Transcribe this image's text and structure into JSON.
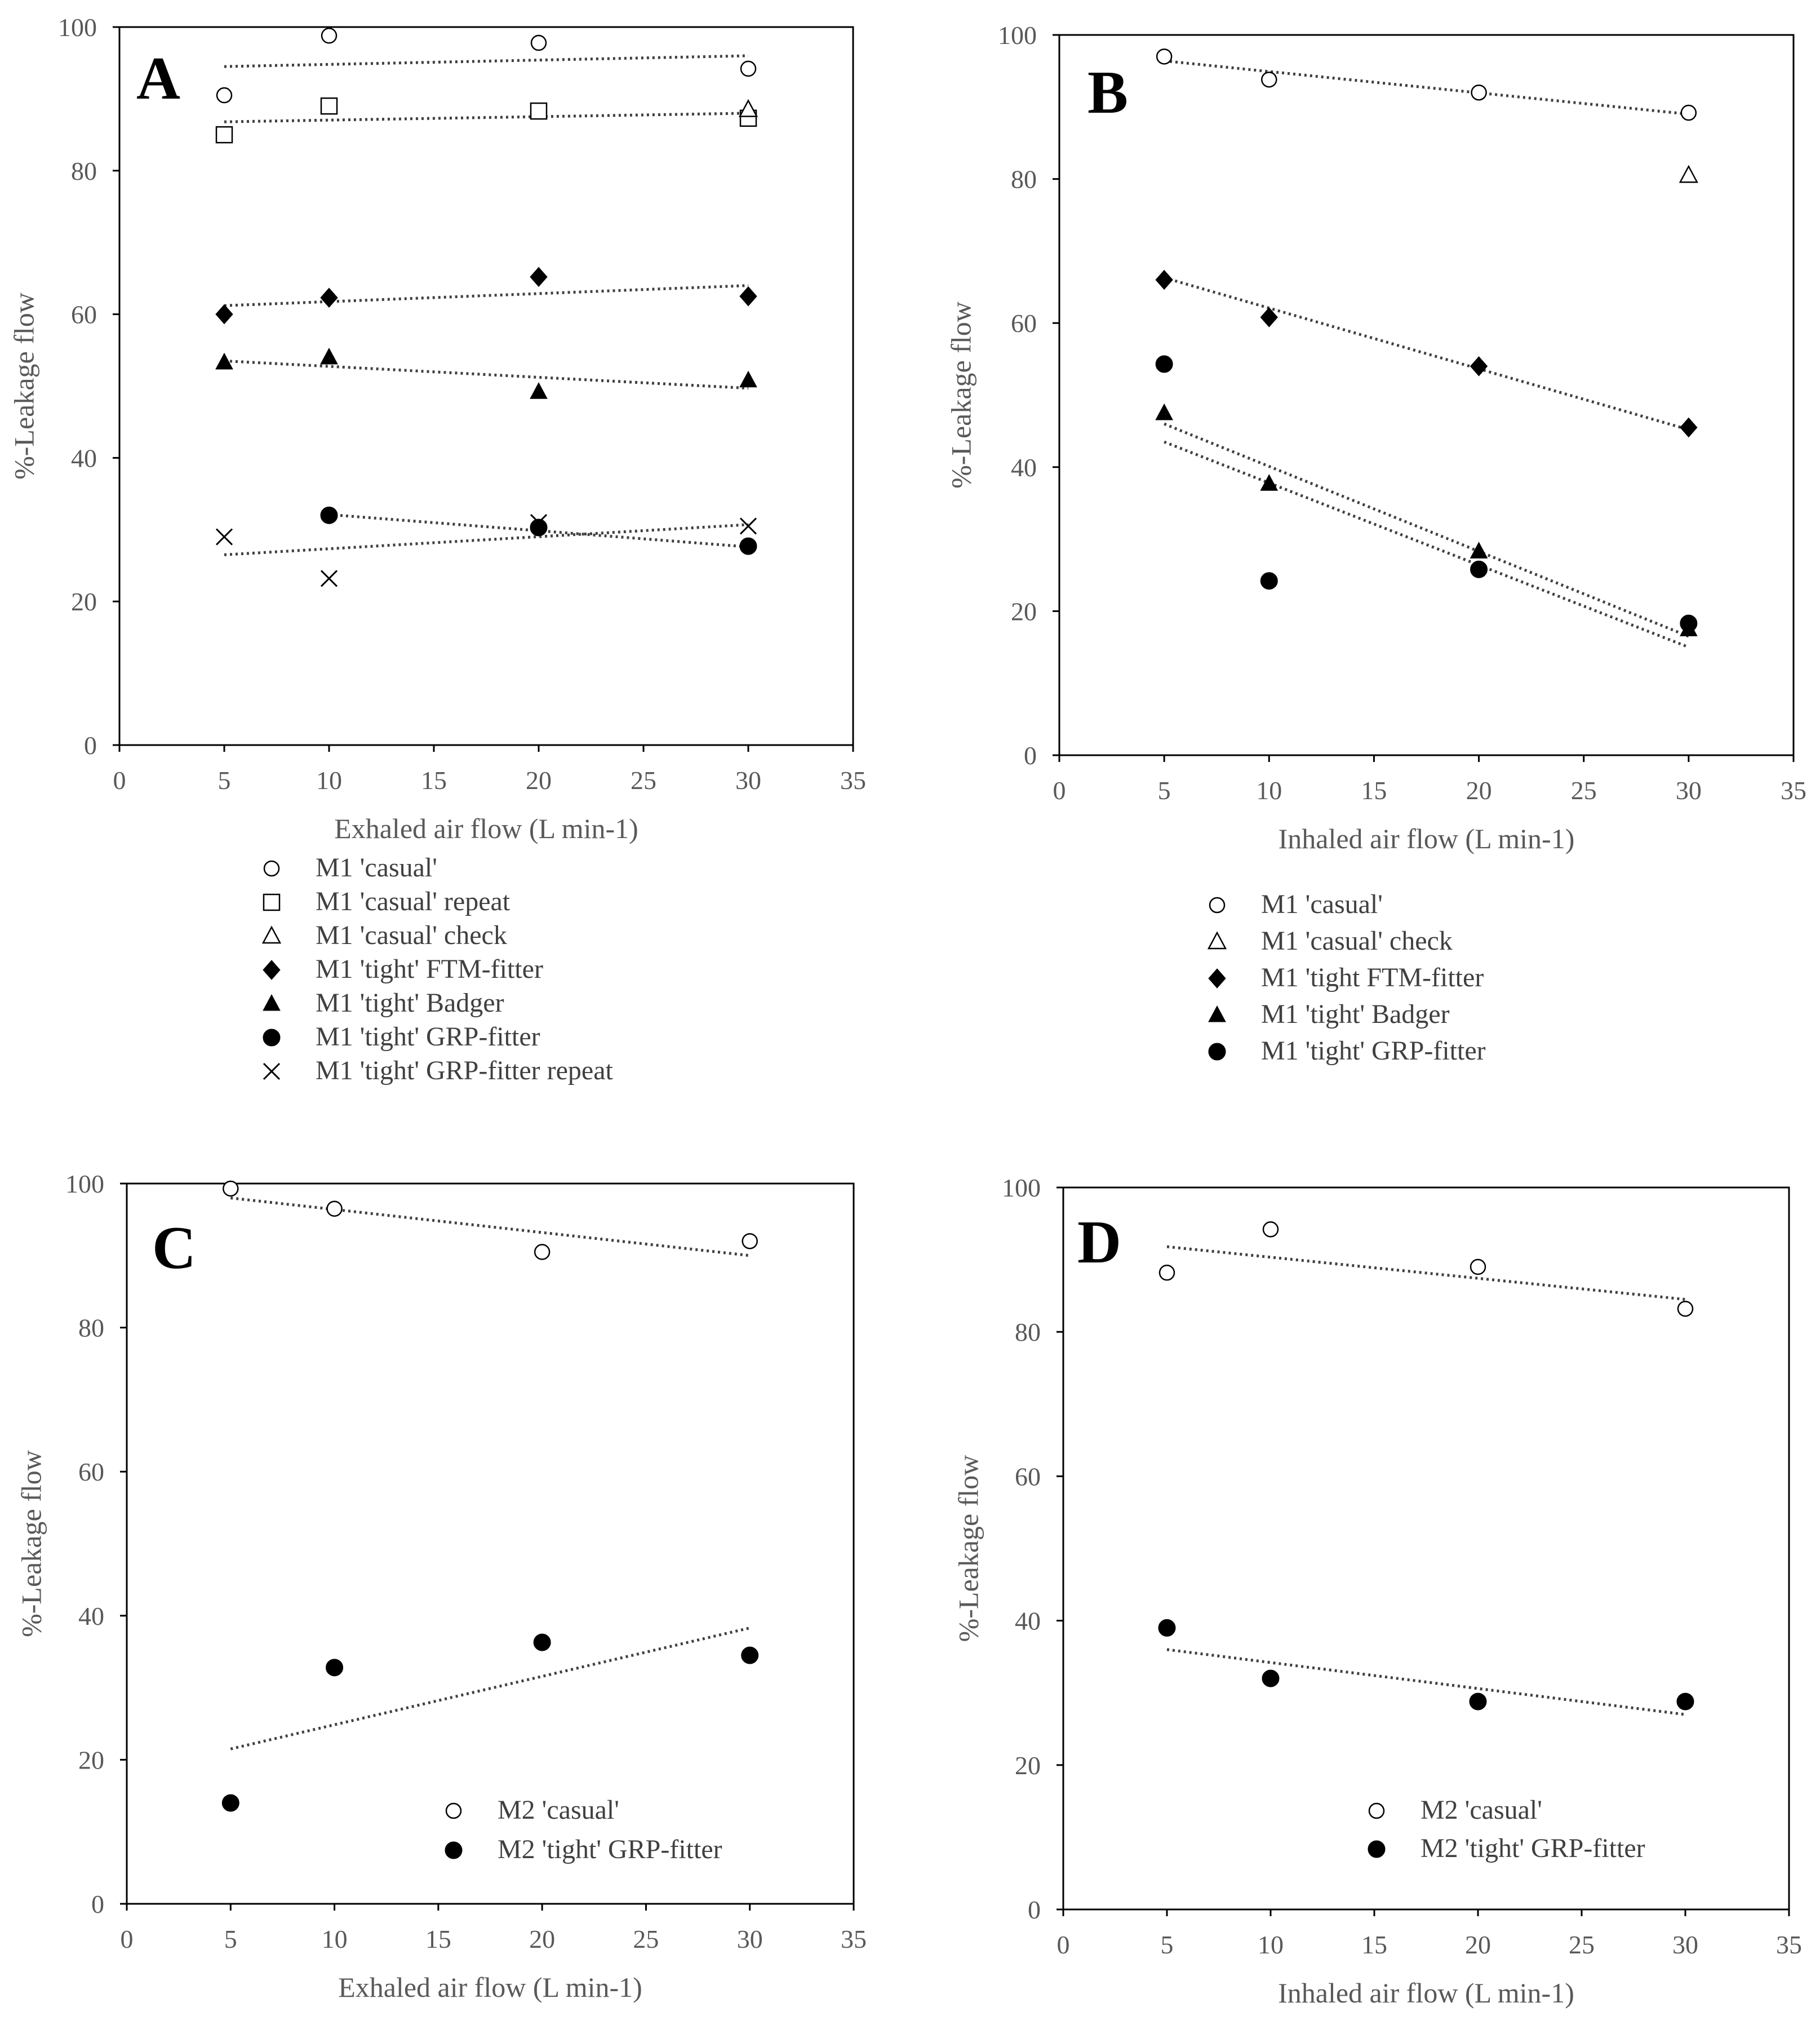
{
  "chart_data": [
    {
      "panel": "A",
      "type": "scatter",
      "xlabel": "Exhaled air flow (L min-1)",
      "ylabel": "%-Leakage flow",
      "xlim": [
        0,
        35
      ],
      "ylim": [
        0,
        100
      ],
      "xticks": [
        0,
        5,
        10,
        15,
        20,
        25,
        30,
        35
      ],
      "yticks": [
        0,
        20,
        40,
        60,
        80,
        100
      ],
      "series": [
        {
          "name": "M1 'casual'",
          "marker": "circle-open",
          "x": [
            5,
            10,
            20,
            30
          ],
          "y": [
            90.5,
            98.8,
            97.8,
            94.2
          ],
          "trend": [
            94.5,
            96.0
          ]
        },
        {
          "name": "M1 'casual' repeat",
          "marker": "square-open",
          "x": [
            5,
            10,
            20,
            30
          ],
          "y": [
            85,
            89,
            88.3,
            87.3
          ],
          "trend": [
            86.8,
            88.0
          ]
        },
        {
          "name": "M1 'casual' check",
          "marker": "triangle-open",
          "x": [
            30
          ],
          "y": [
            88.5
          ],
          "trend": null
        },
        {
          "name": "M1 'tight' FTM-fitter",
          "marker": "diamond-filled",
          "x": [
            5,
            10,
            20,
            30
          ],
          "y": [
            60,
            62.3,
            65.2,
            62.5
          ],
          "trend": [
            61.2,
            64.0
          ]
        },
        {
          "name": "M1 'tight' Badger",
          "marker": "triangle-filled",
          "x": [
            5,
            10,
            20,
            30
          ],
          "y": [
            53.3,
            54,
            49.2,
            50.8
          ],
          "trend": [
            53.5,
            49.7
          ]
        },
        {
          "name": "M1 'tight' GRP-fitter",
          "marker": "circle-filled",
          "x": [
            10,
            20,
            30
          ],
          "y": [
            32,
            30.3,
            27.7
          ],
          "trend": [
            32.1,
            27.6
          ]
        },
        {
          "name": "M1 'tight' GRP-fitter repeat",
          "marker": "cross",
          "x": [
            5,
            10,
            20,
            30
          ],
          "y": [
            29,
            23.2,
            31,
            30.5
          ],
          "trend": [
            26.5,
            30.7
          ]
        }
      ]
    },
    {
      "panel": "B",
      "type": "scatter",
      "xlabel": "Inhaled air flow (L min-1)",
      "ylabel": "%-Leakage flow",
      "xlim": [
        0,
        35
      ],
      "ylim": [
        0,
        100
      ],
      "xticks": [
        0,
        5,
        10,
        15,
        20,
        25,
        30,
        35
      ],
      "yticks": [
        0,
        20,
        40,
        60,
        80,
        100
      ],
      "series": [
        {
          "name": "M1 'casual'",
          "marker": "circle-open",
          "x": [
            5,
            10,
            20,
            30
          ],
          "y": [
            97,
            93.8,
            92,
            89.2
          ],
          "trend": [
            96.4,
            89.0
          ]
        },
        {
          "name": "M1 'casual' check",
          "marker": "triangle-open",
          "x": [
            30
          ],
          "y": [
            80.5
          ],
          "trend": null
        },
        {
          "name": "M1 'tight FTM-fitter",
          "marker": "diamond-filled",
          "x": [
            5,
            10,
            20,
            30
          ],
          "y": [
            66,
            60.8,
            54,
            45.5
          ],
          "trend": [
            66.3,
            45.2
          ]
        },
        {
          "name": "M1 'tight' Badger",
          "marker": "triangle-filled",
          "x": [
            5,
            10,
            20,
            30
          ],
          "y": [
            47.5,
            37.7,
            28.3,
            17.5
          ],
          "trend": [
            46.0,
            16.5
          ]
        },
        {
          "name": "M1 'tight' GRP-fitter",
          "marker": "circle-filled",
          "x": [
            5,
            10,
            20,
            30
          ],
          "y": [
            54.3,
            24.2,
            25.8,
            18.3
          ],
          "trend": [
            43.5,
            15.0
          ]
        }
      ]
    },
    {
      "panel": "C",
      "type": "scatter",
      "xlabel": "Exhaled air flow (L min-1)",
      "ylabel": "%-Leakage flow",
      "xlim": [
        0,
        35
      ],
      "ylim": [
        0,
        100
      ],
      "xticks": [
        0,
        5,
        10,
        15,
        20,
        25,
        30,
        35
      ],
      "yticks": [
        0,
        20,
        40,
        60,
        80,
        100
      ],
      "series": [
        {
          "name": "M2 'casual'",
          "marker": "circle-open",
          "x": [
            5,
            10,
            20,
            30
          ],
          "y": [
            99.3,
            96.5,
            90.5,
            92
          ],
          "trend": [
            98.0,
            90.0
          ]
        },
        {
          "name": "M2 'tight' GRP-fitter",
          "marker": "circle-filled",
          "x": [
            5,
            10,
            20,
            30
          ],
          "y": [
            14,
            32.8,
            36.3,
            34.5
          ],
          "trend": [
            21.5,
            38.3
          ]
        }
      ]
    },
    {
      "panel": "D",
      "type": "scatter",
      "xlabel": "Inhaled air flow (L min-1)",
      "ylabel": "%-Leakage flow",
      "xlim": [
        0,
        35
      ],
      "ylim": [
        0,
        100
      ],
      "xticks": [
        0,
        5,
        10,
        15,
        20,
        25,
        30,
        35
      ],
      "yticks": [
        0,
        20,
        40,
        60,
        80,
        100
      ],
      "series": [
        {
          "name": "M2 'casual'",
          "marker": "circle-open",
          "x": [
            5,
            10,
            20,
            30
          ],
          "y": [
            88.2,
            94.2,
            89,
            83.2
          ],
          "trend": [
            91.8,
            84.5
          ]
        },
        {
          "name": "M2 'tight' GRP-fitter",
          "marker": "circle-filled",
          "x": [
            5,
            10,
            20,
            30
          ],
          "y": [
            39,
            32,
            28.8,
            28.8
          ],
          "trend": [
            36.0,
            27.0
          ]
        }
      ]
    }
  ]
}
